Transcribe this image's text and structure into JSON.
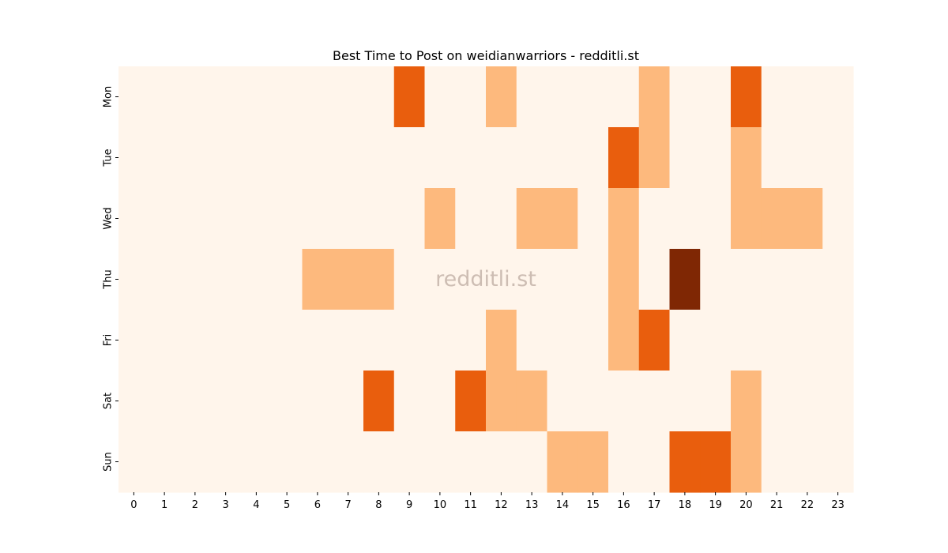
{
  "chart_data": {
    "type": "heatmap",
    "title": "Best Time to Post on weidianwarriors - redditli.st",
    "watermark": "redditli.st",
    "xlabel": "",
    "ylabel": "",
    "x_categories": [
      "0",
      "1",
      "2",
      "3",
      "4",
      "5",
      "6",
      "7",
      "8",
      "9",
      "10",
      "11",
      "12",
      "13",
      "14",
      "15",
      "16",
      "17",
      "18",
      "19",
      "20",
      "21",
      "22",
      "23"
    ],
    "y_categories": [
      "Mon",
      "Tue",
      "Wed",
      "Thu",
      "Fri",
      "Sat",
      "Sun"
    ],
    "values": [
      [
        0,
        0,
        0,
        0,
        0,
        0,
        0,
        0,
        0,
        2,
        0,
        0,
        1,
        0,
        0,
        0,
        0,
        1,
        0,
        0,
        2,
        0,
        0,
        0
      ],
      [
        0,
        0,
        0,
        0,
        0,
        0,
        0,
        0,
        0,
        0,
        0,
        0,
        0,
        0,
        0,
        0,
        2,
        1,
        0,
        0,
        1,
        0,
        0,
        0
      ],
      [
        0,
        0,
        0,
        0,
        0,
        0,
        0,
        0,
        0,
        0,
        1,
        0,
        0,
        1,
        1,
        0,
        1,
        0,
        0,
        0,
        1,
        1,
        1,
        0
      ],
      [
        0,
        0,
        0,
        0,
        0,
        0,
        1,
        1,
        1,
        0,
        0,
        0,
        0,
        0,
        0,
        0,
        1,
        0,
        3,
        0,
        0,
        0,
        0,
        0
      ],
      [
        0,
        0,
        0,
        0,
        0,
        0,
        0,
        0,
        0,
        0,
        0,
        0,
        1,
        0,
        0,
        0,
        1,
        2,
        0,
        0,
        0,
        0,
        0,
        0
      ],
      [
        0,
        0,
        0,
        0,
        0,
        0,
        0,
        0,
        2,
        0,
        0,
        2,
        1,
        1,
        0,
        0,
        0,
        0,
        0,
        0,
        1,
        0,
        0,
        0
      ],
      [
        0,
        0,
        0,
        0,
        0,
        0,
        0,
        0,
        0,
        0,
        0,
        0,
        0,
        0,
        1,
        1,
        0,
        0,
        2,
        2,
        1,
        0,
        0,
        0
      ]
    ],
    "colormap": [
      "#fff5eb",
      "#fdb97d",
      "#e95e0d",
      "#7f2704"
    ],
    "grid": false,
    "legend": "none"
  }
}
